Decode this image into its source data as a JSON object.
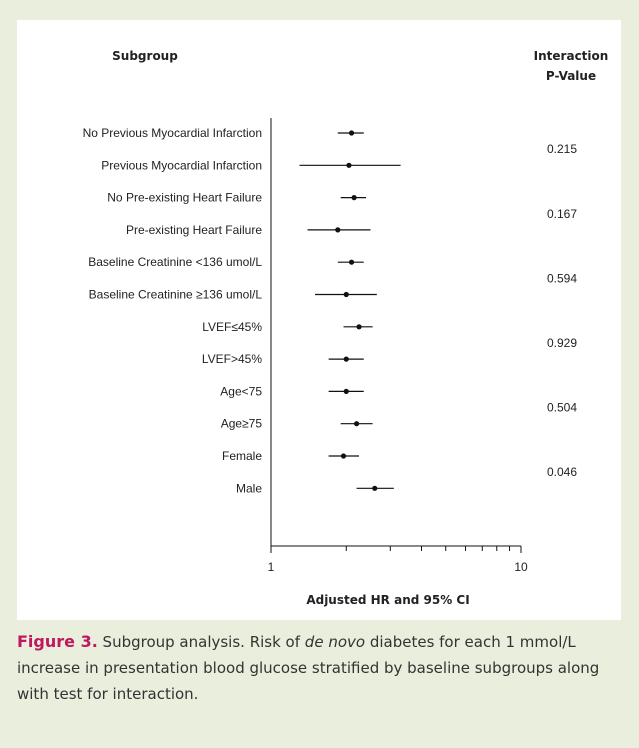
{
  "chart_data": {
    "type": "forest",
    "header_left": "Subgroup",
    "header_right_line1": "Interaction",
    "header_right_line2": "P-Value",
    "xlabel": "Adjusted HR and 95% CI",
    "x_scale": "log",
    "xlim": [
      1,
      10
    ],
    "xticks": [
      {
        "value": 1,
        "label": "1"
      },
      {
        "value": 10,
        "label": "10"
      }
    ],
    "rows": [
      {
        "label": "No Previous Myocardial Infarction",
        "hr": 2.1,
        "lo": 1.85,
        "hi": 2.35
      },
      {
        "label": "Previous Myocardial Infarction",
        "hr": 2.05,
        "lo": 1.3,
        "hi": 3.3
      },
      {
        "label": "No Pre-existing Heart Failure",
        "hr": 2.15,
        "lo": 1.9,
        "hi": 2.4
      },
      {
        "label": "Pre-existing Heart Failure",
        "hr": 1.85,
        "lo": 1.4,
        "hi": 2.5
      },
      {
        "label": "Baseline Creatinine <136 umol/L",
        "hr": 2.1,
        "lo": 1.85,
        "hi": 2.35
      },
      {
        "label": "Baseline Creatinine ≥136 umol/L",
        "hr": 2.0,
        "lo": 1.5,
        "hi": 2.65
      },
      {
        "label": "LVEF≤45%",
        "hr": 2.25,
        "lo": 1.95,
        "hi": 2.55
      },
      {
        "label": "LVEF>45%",
        "hr": 2.0,
        "lo": 1.7,
        "hi": 2.35
      },
      {
        "label": "Age<75",
        "hr": 2.0,
        "lo": 1.7,
        "hi": 2.35
      },
      {
        "label": "Age≥75",
        "hr": 2.2,
        "lo": 1.9,
        "hi": 2.55
      },
      {
        "label": "Female",
        "hr": 1.95,
        "lo": 1.7,
        "hi": 2.25
      },
      {
        "label": "Male",
        "hr": 2.6,
        "lo": 2.2,
        "hi": 3.1
      }
    ],
    "pvalues": [
      {
        "rows": [
          0,
          1
        ],
        "value": "0.215"
      },
      {
        "rows": [
          2,
          3
        ],
        "value": "0.167"
      },
      {
        "rows": [
          4,
          5
        ],
        "value": "0.594"
      },
      {
        "rows": [
          6,
          7
        ],
        "value": "0.929"
      },
      {
        "rows": [
          8,
          9
        ],
        "value": "0.504"
      },
      {
        "rows": [
          10,
          11
        ],
        "value": "0.046"
      }
    ]
  },
  "caption": {
    "figure_label": "Figure 3.",
    "text_part1": " Subgroup analysis. Risk of ",
    "text_italic": "de novo",
    "text_part2": " diabetes for each 1 mmol/L increase in presentation blood glucose stratified by base­line subgroups along with test for interaction."
  }
}
